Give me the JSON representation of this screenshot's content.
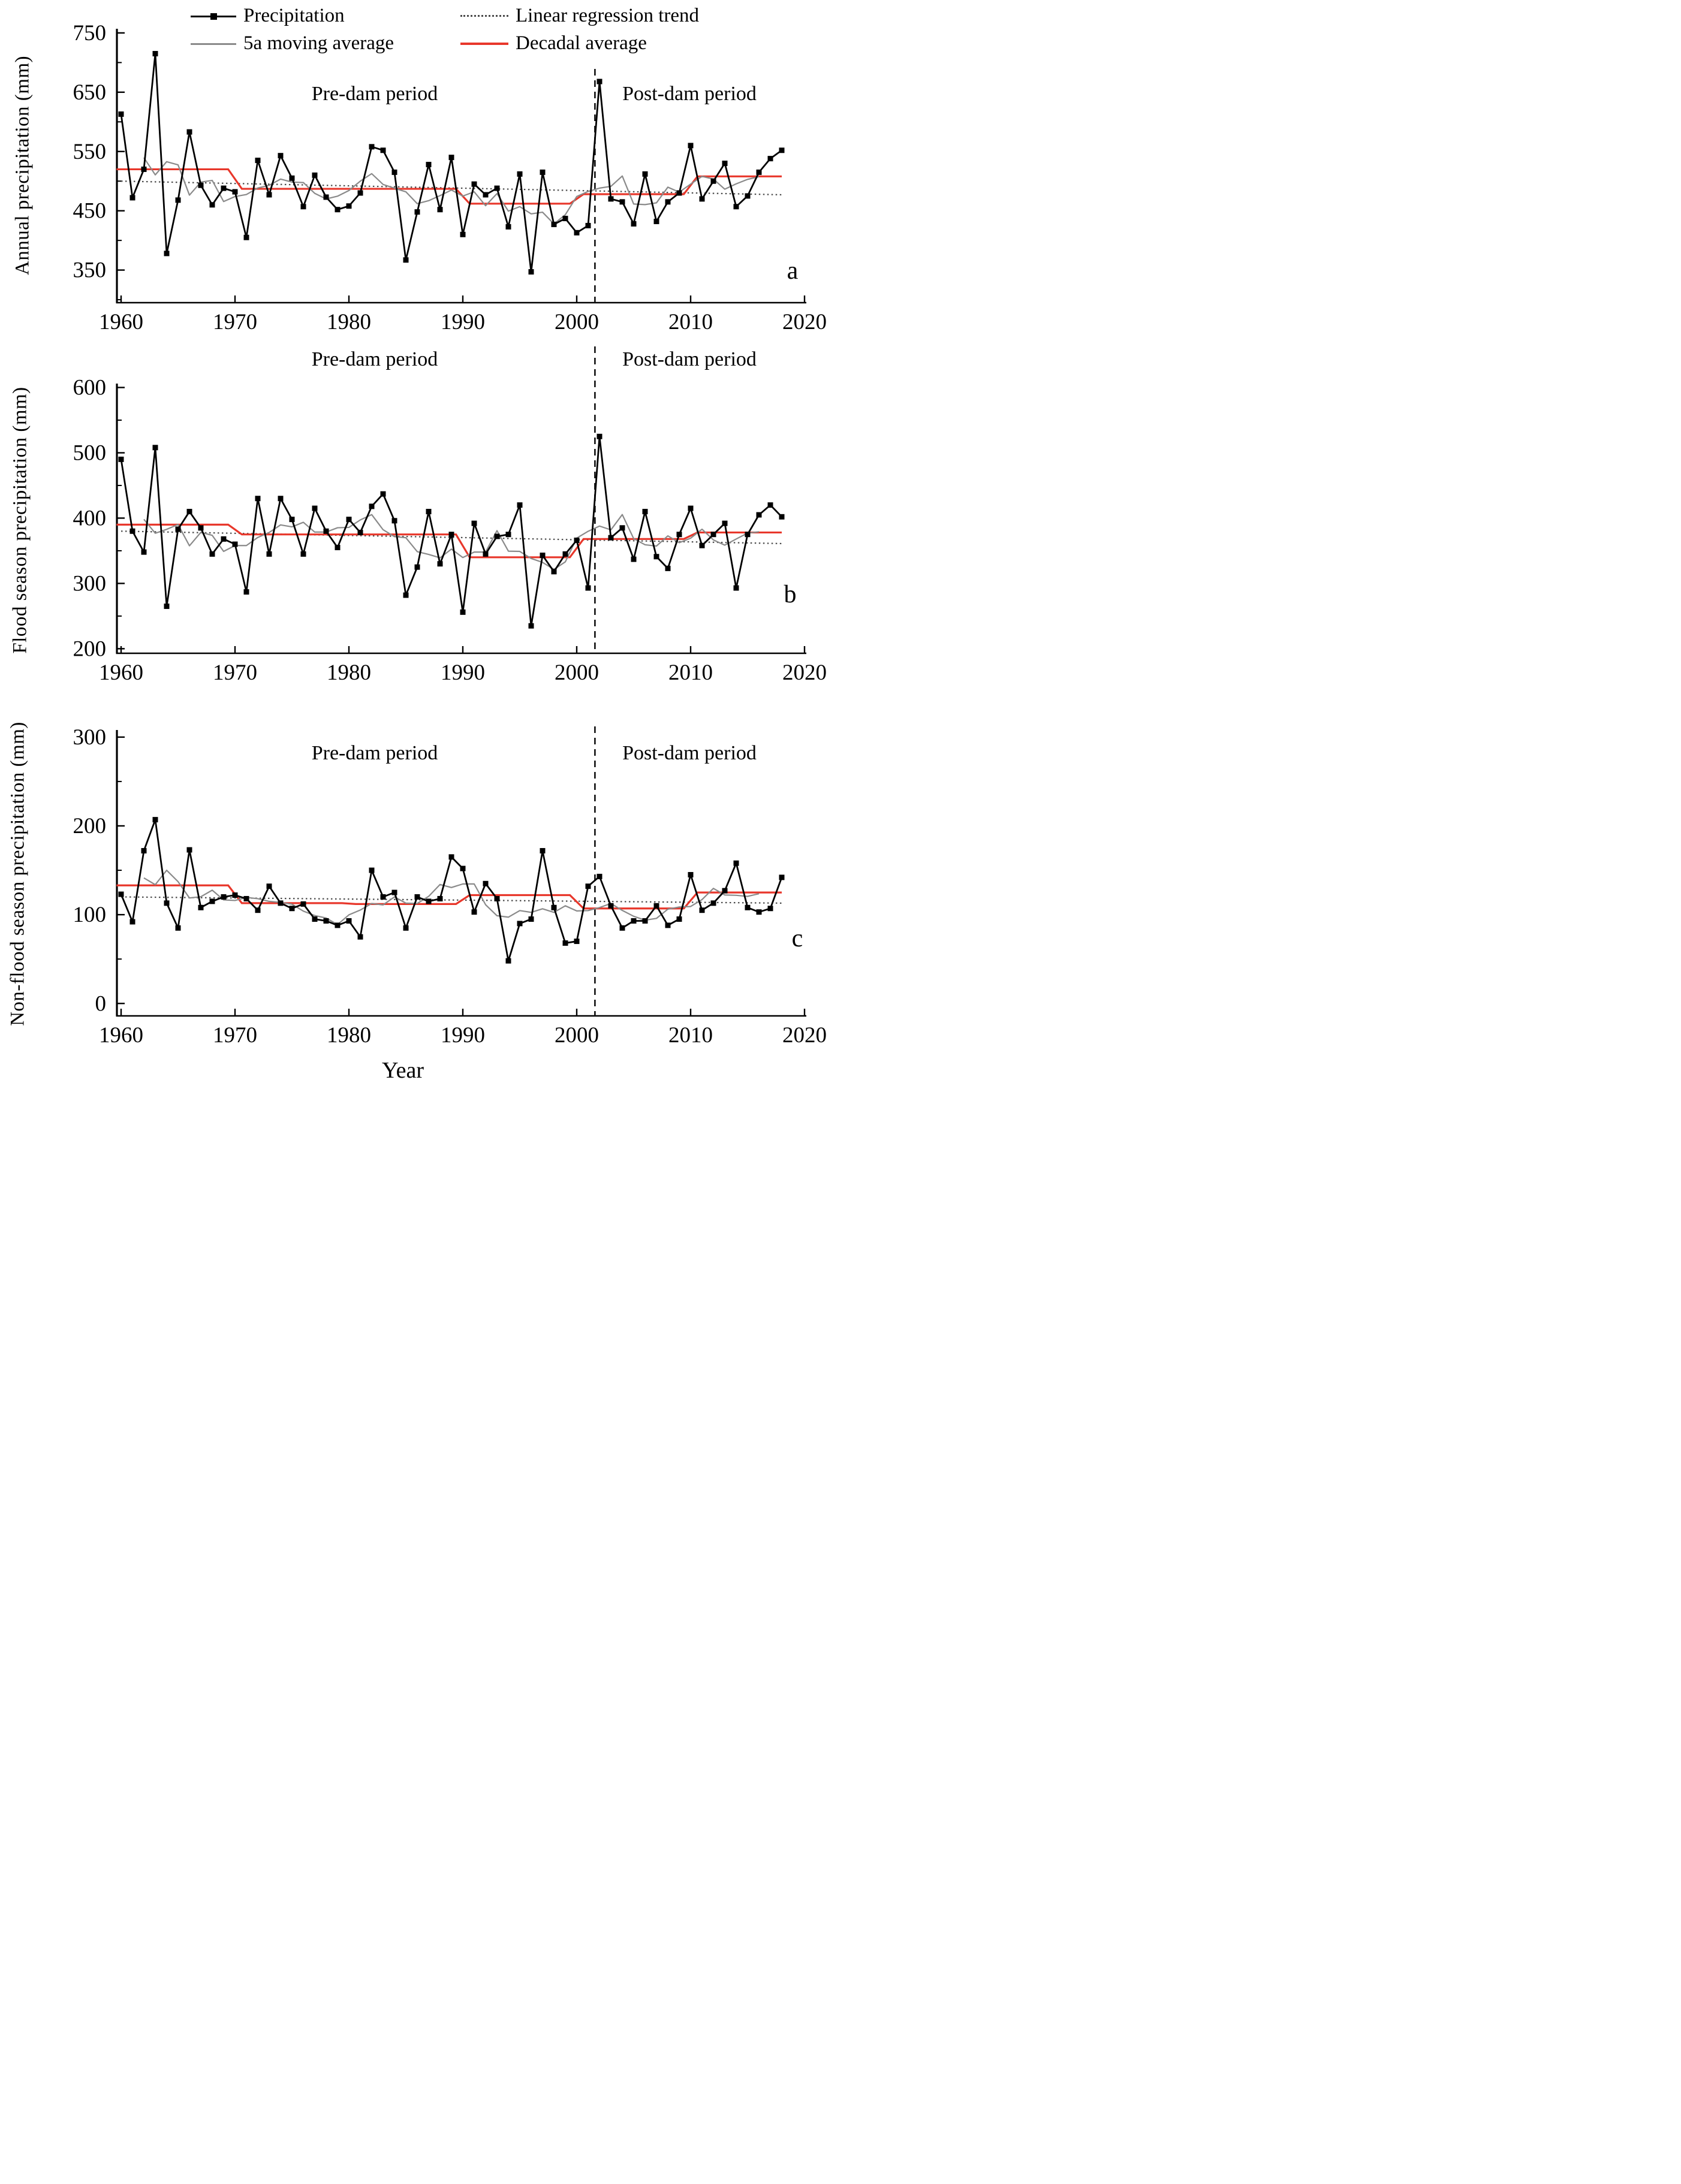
{
  "figure_kind": "three-panel precipitation time series (1960-2018)",
  "x_axis_title": "Year",
  "colors": {
    "precipitation": "#000000",
    "moving_average": "#8a8a8a",
    "trend": "#4a4a4a",
    "decadal": "#e8372b",
    "divider": "#111111"
  },
  "legend": {
    "items": [
      {
        "label": "Precipitation",
        "swatch": "black-line-square-marker"
      },
      {
        "label": "5a moving average",
        "swatch": "gray-line"
      },
      {
        "label": "Linear regression trend",
        "swatch": "dotted-line"
      },
      {
        "label": "Decadal average",
        "swatch": "red-line"
      }
    ]
  },
  "chart_data": [
    {
      "id": "a",
      "type": "line",
      "ylabel": "Annual precipitation (mm)",
      "xlabel": "Year",
      "ylim": [
        350,
        750
      ],
      "yticks": [
        350,
        450,
        550,
        650,
        750
      ],
      "yminor": [
        300,
        400,
        500,
        600,
        700
      ],
      "xlim": [
        1960,
        2020
      ],
      "xticks": [
        1960,
        1970,
        1980,
        1990,
        2000,
        2010,
        2020
      ],
      "years_start": 1960,
      "years_end": 2018,
      "series": [
        {
          "name": "Precipitation",
          "style": "line+square-markers",
          "color": "#000000",
          "values": [
            613,
            472,
            520,
            715,
            378,
            468,
            583,
            493,
            460,
            488,
            482,
            405,
            535,
            477,
            543,
            505,
            457,
            510,
            473,
            452,
            458,
            480,
            558,
            552,
            515,
            367,
            448,
            528,
            452,
            540,
            410,
            495,
            477,
            488,
            423,
            512,
            347,
            515,
            427,
            437,
            413,
            425,
            668,
            470,
            465,
            428,
            512,
            432,
            465,
            480,
            560,
            470,
            500,
            530,
            457,
            475,
            515,
            538,
            552
          ]
        },
        {
          "name": "5a moving average",
          "style": "line",
          "color": "#8a8a8a",
          "derived_from": "Precipitation",
          "window": 5
        },
        {
          "name": "Linear regression trend",
          "style": "dotted",
          "color": "#4a4a4a",
          "endpoints": [
            [
              1960,
              500
            ],
            [
              2018,
              477
            ]
          ]
        },
        {
          "name": "Decadal average",
          "style": "step",
          "color": "#e8372b",
          "decades": [
            {
              "start": 1960,
              "end": 1969,
              "value": 520
            },
            {
              "start": 1970,
              "end": 1979,
              "value": 487
            },
            {
              "start": 1980,
              "end": 1989,
              "value": 487
            },
            {
              "start": 1990,
              "end": 1999,
              "value": 462
            },
            {
              "start": 2000,
              "end": 2009,
              "value": 478
            },
            {
              "start": 2010,
              "end": 2018,
              "value": 508
            }
          ]
        }
      ],
      "annotations": {
        "pre_dam": "Pre-dam period",
        "post_dam": "Post-dam period",
        "letter": "a",
        "divider_between_years": [
          2001,
          2002
        ]
      }
    },
    {
      "id": "b",
      "type": "line",
      "ylabel": "Flood season precipitation (mm)",
      "xlabel": "Year",
      "ylim": [
        200,
        600
      ],
      "yticks": [
        200,
        300,
        400,
        500,
        600
      ],
      "yminor": [
        250,
        350,
        450,
        550
      ],
      "xlim": [
        1960,
        2020
      ],
      "xticks": [
        1960,
        1970,
        1980,
        1990,
        2000,
        2010,
        2020
      ],
      "years_start": 1960,
      "years_end": 2018,
      "series": [
        {
          "name": "Precipitation",
          "style": "line+square-markers",
          "color": "#000000",
          "values": [
            490,
            380,
            348,
            508,
            265,
            383,
            410,
            385,
            345,
            368,
            360,
            287,
            430,
            345,
            430,
            398,
            345,
            415,
            380,
            355,
            398,
            378,
            418,
            437,
            396,
            282,
            325,
            410,
            330,
            375,
            256,
            392,
            345,
            372,
            375,
            420,
            235,
            343,
            318,
            345,
            366,
            293,
            525,
            370,
            385,
            337,
            410,
            341,
            323,
            375,
            415,
            358,
            375,
            392,
            293,
            375,
            405,
            420,
            402
          ]
        },
        {
          "name": "5a moving average",
          "style": "line",
          "color": "#8a8a8a",
          "derived_from": "Precipitation",
          "window": 5
        },
        {
          "name": "Linear regression trend",
          "style": "dotted",
          "color": "#4a4a4a",
          "endpoints": [
            [
              1960,
              380
            ],
            [
              2018,
              361
            ]
          ]
        },
        {
          "name": "Decadal average",
          "style": "step",
          "color": "#e8372b",
          "decades": [
            {
              "start": 1960,
              "end": 1969,
              "value": 390
            },
            {
              "start": 1970,
              "end": 1979,
              "value": 375
            },
            {
              "start": 1980,
              "end": 1989,
              "value": 375
            },
            {
              "start": 1990,
              "end": 1999,
              "value": 340
            },
            {
              "start": 2000,
              "end": 2009,
              "value": 368
            },
            {
              "start": 2010,
              "end": 2018,
              "value": 378
            }
          ]
        }
      ],
      "annotations": {
        "pre_dam": "Pre-dam period",
        "post_dam": "Post-dam period",
        "letter": "b",
        "divider_between_years": [
          2001,
          2002
        ]
      }
    },
    {
      "id": "c",
      "type": "line",
      "ylabel": "Non-flood season precipitation (mm)",
      "xlabel": "Year",
      "ylim": [
        0,
        300
      ],
      "yticks": [
        0,
        100,
        200,
        300
      ],
      "yminor": [
        50,
        150,
        250
      ],
      "xlim": [
        1960,
        2020
      ],
      "xticks": [
        1960,
        1970,
        1980,
        1990,
        2000,
        2010,
        2020
      ],
      "years_start": 1960,
      "years_end": 2018,
      "series": [
        {
          "name": "Precipitation",
          "style": "line+square-markers",
          "color": "#000000",
          "values": [
            123,
            92,
            172,
            207,
            113,
            85,
            173,
            108,
            115,
            120,
            122,
            118,
            105,
            132,
            113,
            107,
            112,
            95,
            93,
            88,
            93,
            75,
            150,
            120,
            125,
            85,
            120,
            115,
            118,
            165,
            152,
            103,
            135,
            118,
            48,
            90,
            95,
            172,
            108,
            68,
            70,
            132,
            143,
            110,
            85,
            93,
            93,
            110,
            88,
            95,
            145,
            105,
            113,
            127,
            158,
            108,
            103,
            107,
            142
          ]
        },
        {
          "name": "5a moving average",
          "style": "line",
          "color": "#8a8a8a",
          "derived_from": "Precipitation",
          "window": 5
        },
        {
          "name": "Linear regression trend",
          "style": "dotted",
          "color": "#4a4a4a",
          "endpoints": [
            [
              1960,
              120
            ],
            [
              2018,
              113
            ]
          ]
        },
        {
          "name": "Decadal average",
          "style": "step",
          "color": "#e8372b",
          "decades": [
            {
              "start": 1960,
              "end": 1969,
              "value": 133
            },
            {
              "start": 1970,
              "end": 1979,
              "value": 113
            },
            {
              "start": 1980,
              "end": 1989,
              "value": 112
            },
            {
              "start": 1990,
              "end": 1999,
              "value": 122
            },
            {
              "start": 2000,
              "end": 2009,
              "value": 107
            },
            {
              "start": 2010,
              "end": 2018,
              "value": 125
            }
          ]
        }
      ],
      "annotations": {
        "pre_dam": "Pre-dam period",
        "post_dam": "Post-dam period",
        "letter": "c",
        "divider_between_years": [
          2001,
          2002
        ]
      }
    }
  ]
}
